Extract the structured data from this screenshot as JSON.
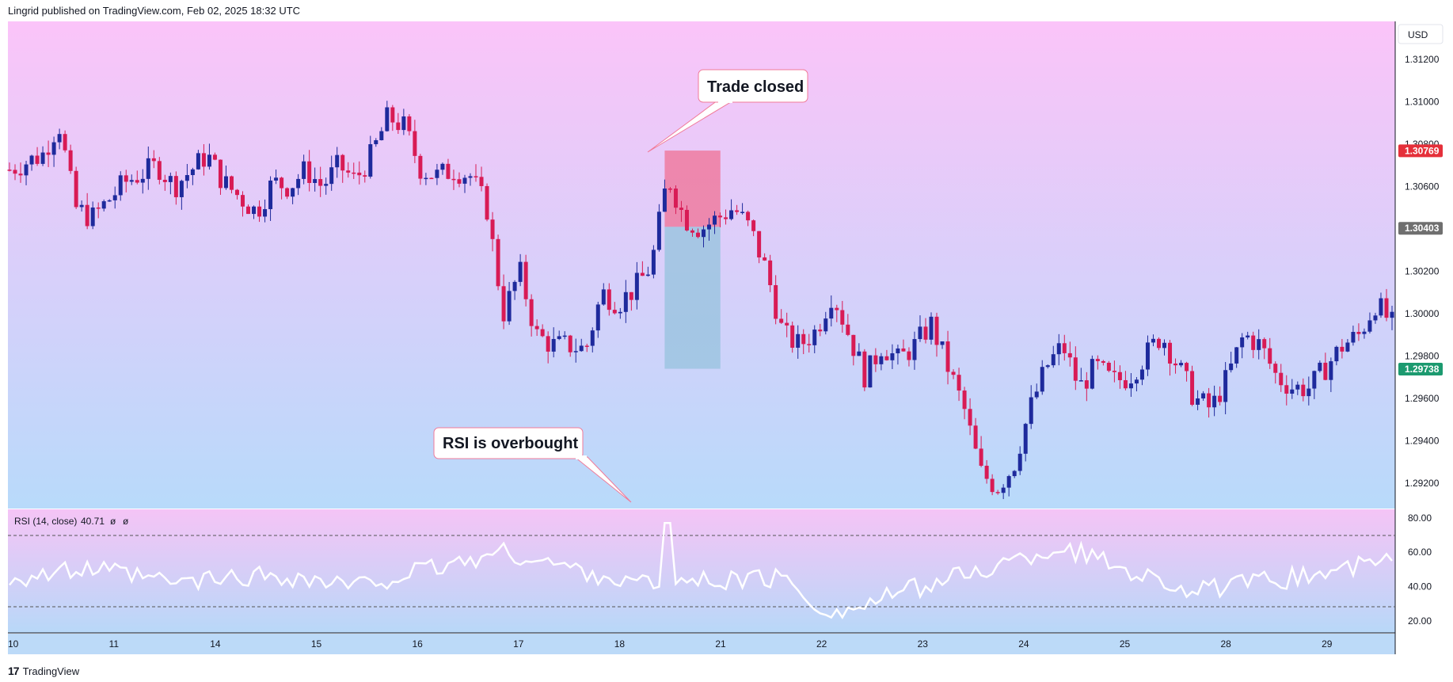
{
  "header": {
    "attribution": "Lingrid published on TradingView.com, Feb 02, 2025 18:32 UTC"
  },
  "footer": {
    "logo": "17",
    "brand": "TradingView"
  },
  "colors": {
    "up": "#1e2a9c",
    "down": "#d81b55",
    "bg_top": "#fbc4f9",
    "bg_bottom": "#b8dafa",
    "loss_zone": "#ee7ba0",
    "profit_zone": "#9cc4e0",
    "price_red": "#e5303a",
    "price_gray": "#6f6f6f",
    "price_green": "#1c9a6f",
    "rsi_line": "#ffffff"
  },
  "chart_data": [
    {
      "type": "candlestick",
      "currency": "USD",
      "y_ticks": [
        "1.31200",
        "1.31000",
        "1.30800",
        "1.30600",
        "1.30200",
        "1.30000",
        "1.29800",
        "1.29600",
        "1.29400",
        "1.29200"
      ],
      "ylim": [
        1.2908,
        1.3138
      ],
      "x_ticks": [
        "10",
        "11",
        "14",
        "15",
        "16",
        "17",
        "18",
        "21",
        "22",
        "23",
        "24",
        "25",
        "28",
        "29"
      ],
      "price_labels": [
        {
          "value": "1.30769",
          "color": "red"
        },
        {
          "value": "1.30403",
          "color": "gray"
        },
        {
          "value": "1.29738",
          "color": "green"
        }
      ],
      "zones": [
        {
          "type": "stop-loss",
          "from": 1.3041,
          "to": 1.3077,
          "start_index": 40,
          "end_index": 43
        },
        {
          "type": "take-profit",
          "from": 1.2974,
          "to": 1.3041,
          "start_index": 40,
          "end_index": 43
        }
      ],
      "close_path": [
        [
          0,
          1.3068
        ],
        [
          2,
          1.3075
        ],
        [
          3,
          1.309
        ],
        [
          4,
          1.305
        ],
        [
          5,
          1.3045
        ],
        [
          7,
          1.3062
        ],
        [
          9,
          1.307
        ],
        [
          10,
          1.306
        ],
        [
          12,
          1.3075
        ],
        [
          13,
          1.3062
        ],
        [
          14,
          1.3055
        ],
        [
          15,
          1.3048
        ],
        [
          16,
          1.3062
        ],
        [
          17,
          1.306
        ],
        [
          18,
          1.3068
        ],
        [
          19,
          1.306
        ],
        [
          20,
          1.307
        ],
        [
          21,
          1.3063
        ],
        [
          22,
          1.3075
        ],
        [
          23,
          1.3093
        ],
        [
          24,
          1.3088
        ],
        [
          25,
          1.3068
        ],
        [
          26,
          1.3065
        ],
        [
          27,
          1.3068
        ],
        [
          28,
          1.3065
        ],
        [
          29,
          1.305
        ],
        [
          30,
          1.3
        ],
        [
          31,
          1.302
        ],
        [
          32,
          1.299
        ],
        [
          33,
          1.2985
        ],
        [
          34,
          1.2985
        ],
        [
          35,
          1.2983
        ],
        [
          36,
          1.301
        ],
        [
          37,
          1.3005
        ],
        [
          38,
          1.3012
        ],
        [
          39,
          1.3023
        ],
        [
          40,
          1.3065
        ],
        [
          41,
          1.3045
        ],
        [
          42,
          1.304
        ],
        [
          43,
          1.3045
        ],
        [
          44,
          1.305
        ],
        [
          45,
          1.304
        ],
        [
          46,
          1.302
        ],
        [
          47,
          1.299
        ],
        [
          48,
          1.2985
        ],
        [
          49,
          1.2992
        ],
        [
          50,
          1.301
        ],
        [
          51,
          1.299
        ],
        [
          52,
          1.297
        ],
        [
          53,
          1.2985
        ],
        [
          54,
          1.2978
        ],
        [
          55,
          1.2985
        ],
        [
          56,
          1.2995
        ],
        [
          57,
          1.2975
        ],
        [
          58,
          1.2955
        ],
        [
          59,
          1.2925
        ],
        [
          60,
          1.2918
        ],
        [
          61,
          1.2928
        ],
        [
          62,
          1.2955
        ],
        [
          63,
          1.2975
        ],
        [
          64,
          1.2985
        ],
        [
          65,
          1.2965
        ],
        [
          66,
          1.2975
        ],
        [
          67,
          1.2968
        ],
        [
          68,
          1.297
        ],
        [
          69,
          1.298
        ],
        [
          70,
          1.299
        ],
        [
          71,
          1.2975
        ],
        [
          72,
          1.296
        ],
        [
          73,
          1.2955
        ],
        [
          74,
          1.297
        ],
        [
          75,
          1.299
        ],
        [
          76,
          1.2985
        ],
        [
          77,
          1.297
        ],
        [
          78,
          1.2965
        ],
        [
          79,
          1.2965
        ],
        [
          80,
          1.2975
        ],
        [
          81,
          1.2985
        ],
        [
          82,
          1.299
        ],
        [
          83,
          1.3005
        ],
        [
          84,
          1.2995
        ]
      ]
    },
    {
      "type": "line",
      "title": "RSI (14, close)",
      "value": "40.71",
      "extra": [
        "ø",
        "ø"
      ],
      "y_ticks": [
        "80.00",
        "60.00",
        "40.00",
        "20.00"
      ],
      "ylim": [
        13,
        85
      ],
      "band": [
        30,
        70
      ],
      "x": [
        0,
        5,
        10,
        16,
        21,
        30,
        38,
        47,
        50,
        55,
        60,
        64,
        72,
        80,
        84
      ],
      "values": [
        45,
        50,
        42,
        47,
        40,
        60,
        42,
        45,
        23,
        39,
        52,
        63,
        37,
        48,
        56
      ]
    }
  ],
  "annotations": [
    {
      "text": "Trade closed"
    },
    {
      "text": "RSI is overbought"
    }
  ]
}
